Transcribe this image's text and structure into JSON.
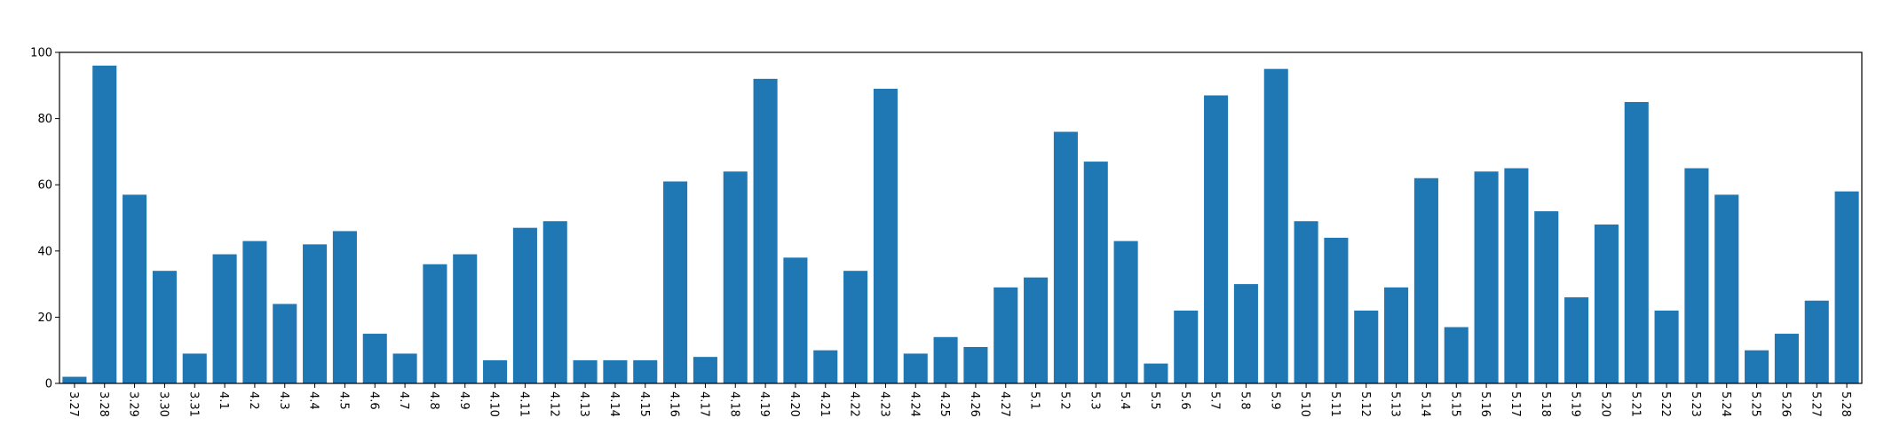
{
  "chart_data": {
    "type": "bar",
    "title": "",
    "xlabel": "",
    "ylabel": "",
    "ylim": [
      0,
      100
    ],
    "yticks": [
      0,
      20,
      40,
      60,
      80,
      100
    ],
    "grid": false,
    "bar_color": "#1f77b4",
    "categories": [
      "3.27",
      "3.28",
      "3.29",
      "3.30",
      "3.31",
      "4.1",
      "4.2",
      "4.3",
      "4.4",
      "4.5",
      "4.6",
      "4.7",
      "4.8",
      "4.9",
      "4.10",
      "4.11",
      "4.12",
      "4.13",
      "4.14",
      "4.15",
      "4.16",
      "4.17",
      "4.18",
      "4.19",
      "4.20",
      "4.21",
      "4.22",
      "4.23",
      "4.24",
      "4.25",
      "4.26",
      "4.27",
      "5.1",
      "5.2",
      "5.3",
      "5.4",
      "5.5",
      "5.6",
      "5.7",
      "5.8",
      "5.9",
      "5.10",
      "5.11",
      "5.12",
      "5.13",
      "5.14",
      "5.15",
      "5.16",
      "5.17",
      "5.18",
      "5.19",
      "5.20",
      "5.21",
      "5.22",
      "5.23",
      "5.24",
      "5.25",
      "5.26",
      "5.27",
      "5.28"
    ],
    "values": [
      2,
      96,
      57,
      34,
      9,
      39,
      43,
      24,
      42,
      46,
      15,
      9,
      36,
      39,
      7,
      47,
      49,
      7,
      7,
      7,
      61,
      8,
      64,
      92,
      38,
      10,
      34,
      89,
      9,
      14,
      11,
      29,
      32,
      76,
      67,
      43,
      6,
      22,
      87,
      30,
      95,
      49,
      44,
      22,
      29,
      62,
      17,
      64,
      65,
      52,
      26,
      48,
      85,
      22,
      65,
      57,
      10,
      15,
      25,
      58
    ]
  }
}
